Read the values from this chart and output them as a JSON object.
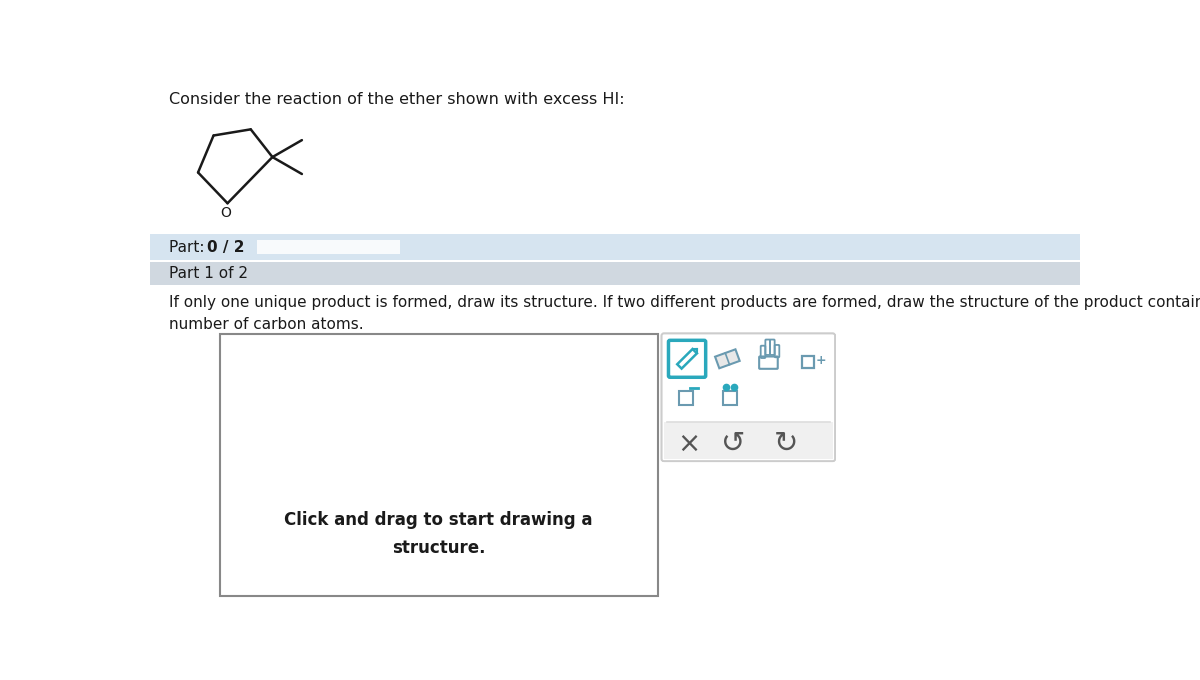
{
  "title_text": "Consider the reaction of the ether shown with excess HI:",
  "title_fontsize": 11.5,
  "bg_color": "#ffffff",
  "part_bar_color": "#d6e4f0",
  "part1_bg": "#d0d8e0",
  "instruction_text": "If only one unique product is formed, draw its structure. If two different products are formed, draw the structure of the product containing the larger\nnumber of carbon atoms.",
  "draw_box_text": "Click and drag to start drawing a\nstructure.",
  "molecule_color": "#1a1a1a",
  "icon_color": "#6a9ab0",
  "icon_teal": "#2aa8bc",
  "progress_bar_color": "#e8f0f8",
  "icon_row3_color": "#888888"
}
